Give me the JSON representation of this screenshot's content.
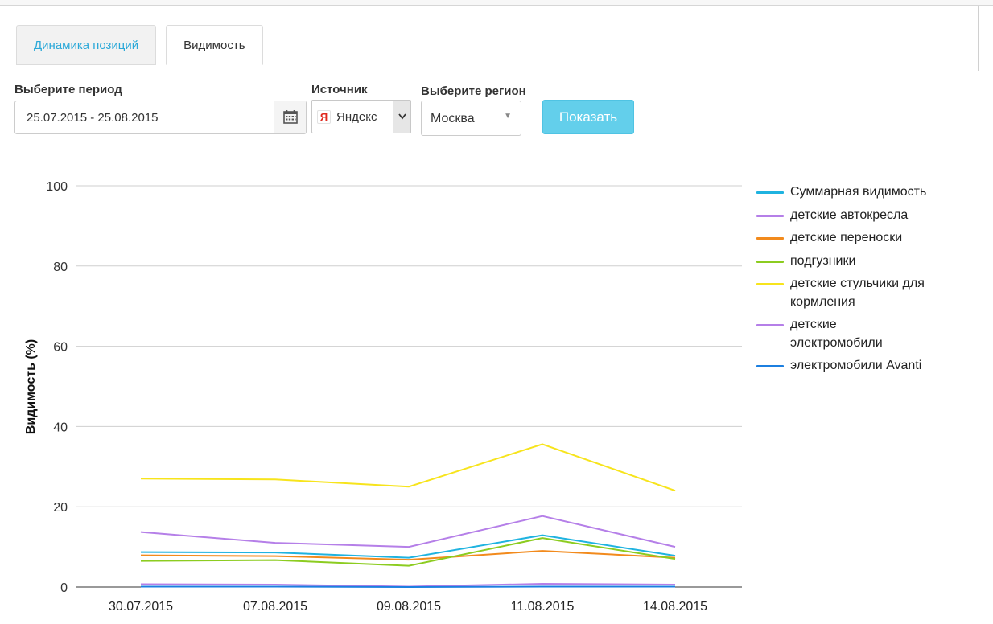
{
  "tabs": [
    {
      "label": "Динамика позиций",
      "active": false
    },
    {
      "label": "Видимость",
      "active": true
    }
  ],
  "form": {
    "period_label": "Выберите период",
    "period_value": "25.07.2015 - 25.08.2015",
    "source_label": "Источник",
    "source_icon_letter": "Я",
    "source_value": "Яндекс",
    "region_label": "Выберите регион",
    "region_value": "Москва",
    "submit_label": "Показать"
  },
  "icons": {
    "calendar": "calendar-icon",
    "source_dropdown": "chevron-down-icon",
    "region_dropdown": "caret-down-icon"
  },
  "colors": {
    "accent": "#2aa8d8",
    "button": "#63cfeb"
  },
  "chart_data": {
    "type": "line",
    "ylabel": "Видимость (%)",
    "xlabel": "",
    "ylim": [
      0,
      100
    ],
    "yticks": [
      0,
      20,
      40,
      60,
      80,
      100
    ],
    "grid": true,
    "legend_position": "right",
    "categories": [
      "30.07.2015",
      "07.08.2015",
      "09.08.2015",
      "11.08.2015",
      "14.08.2015"
    ],
    "series": [
      {
        "name": "Суммарная видимость",
        "color": "#1fb3e0",
        "values": [
          8.7,
          8.6,
          7.3,
          12.9,
          7.8
        ]
      },
      {
        "name": "детские автокресла",
        "color": "#b57fe8",
        "values": [
          13.7,
          11.0,
          10.0,
          17.7,
          10.0
        ]
      },
      {
        "name": "детские переноски",
        "color": "#f28a1c",
        "values": [
          7.9,
          7.7,
          6.8,
          9.0,
          7.3
        ]
      },
      {
        "name": "подгузники",
        "color": "#8ccc20",
        "values": [
          6.5,
          6.7,
          5.3,
          12.2,
          7.0
        ]
      },
      {
        "name": "детские стульчики для кормления",
        "color": "#f7e41c",
        "values": [
          27.0,
          26.8,
          25.0,
          35.6,
          24.0
        ]
      },
      {
        "name": "детские электромобили",
        "color": "#b57fe8",
        "values": [
          0.7,
          0.6,
          0.1,
          0.8,
          0.6
        ]
      },
      {
        "name": "электромобили Avanti",
        "color": "#1c7fe0",
        "values": [
          0.1,
          0.1,
          0.0,
          0.1,
          0.1
        ]
      }
    ]
  }
}
